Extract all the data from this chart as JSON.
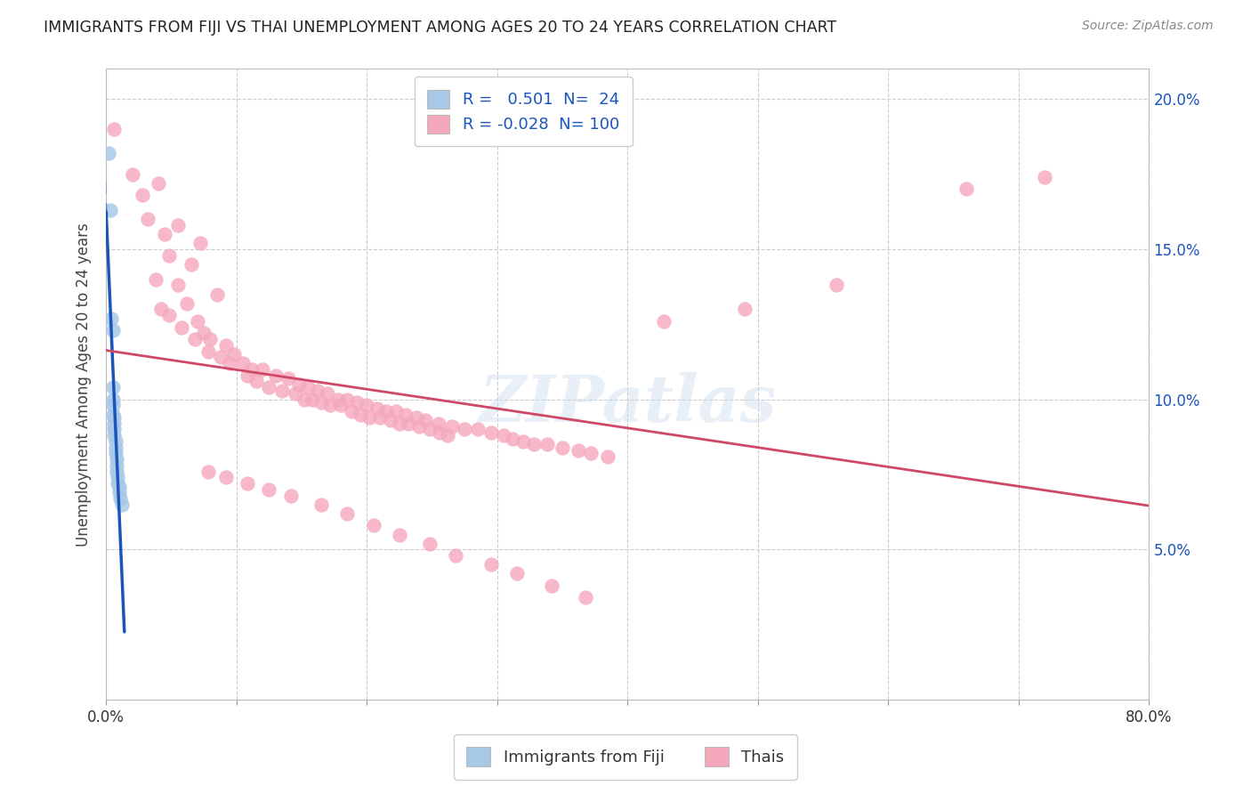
{
  "title": "IMMIGRANTS FROM FIJI VS THAI UNEMPLOYMENT AMONG AGES 20 TO 24 YEARS CORRELATION CHART",
  "source": "Source: ZipAtlas.com",
  "ylabel": "Unemployment Among Ages 20 to 24 years",
  "xlim": [
    0,
    0.8
  ],
  "ylim": [
    0,
    0.21
  ],
  "R_fiji": 0.501,
  "N_fiji": 24,
  "R_thai": -0.028,
  "N_thai": 100,
  "fiji_color": "#a8c8e8",
  "thai_color": "#f5a8bc",
  "fiji_line_color": "#1a55bb",
  "thai_line_color": "#d04868",
  "background_color": "#ffffff",
  "fiji_points": [
    [
      0.002,
      0.182
    ],
    [
      0.003,
      0.163
    ],
    [
      0.004,
      0.127
    ],
    [
      0.005,
      0.123
    ],
    [
      0.005,
      0.104
    ],
    [
      0.005,
      0.1
    ],
    [
      0.005,
      0.098
    ],
    [
      0.005,
      0.095
    ],
    [
      0.006,
      0.094
    ],
    [
      0.006,
      0.092
    ],
    [
      0.006,
      0.09
    ],
    [
      0.006,
      0.088
    ],
    [
      0.007,
      0.086
    ],
    [
      0.007,
      0.084
    ],
    [
      0.007,
      0.082
    ],
    [
      0.008,
      0.08
    ],
    [
      0.008,
      0.078
    ],
    [
      0.008,
      0.076
    ],
    [
      0.009,
      0.074
    ],
    [
      0.009,
      0.072
    ],
    [
      0.01,
      0.071
    ],
    [
      0.01,
      0.069
    ],
    [
      0.011,
      0.067
    ],
    [
      0.012,
      0.065
    ]
  ],
  "thai_points": [
    [
      0.006,
      0.19
    ],
    [
      0.02,
      0.175
    ],
    [
      0.04,
      0.172
    ],
    [
      0.028,
      0.168
    ],
    [
      0.032,
      0.16
    ],
    [
      0.055,
      0.158
    ],
    [
      0.045,
      0.155
    ],
    [
      0.072,
      0.152
    ],
    [
      0.048,
      0.148
    ],
    [
      0.065,
      0.145
    ],
    [
      0.038,
      0.14
    ],
    [
      0.055,
      0.138
    ],
    [
      0.085,
      0.135
    ],
    [
      0.062,
      0.132
    ],
    [
      0.042,
      0.13
    ],
    [
      0.048,
      0.128
    ],
    [
      0.07,
      0.126
    ],
    [
      0.058,
      0.124
    ],
    [
      0.075,
      0.122
    ],
    [
      0.068,
      0.12
    ],
    [
      0.08,
      0.12
    ],
    [
      0.092,
      0.118
    ],
    [
      0.078,
      0.116
    ],
    [
      0.098,
      0.115
    ],
    [
      0.088,
      0.114
    ],
    [
      0.105,
      0.112
    ],
    [
      0.095,
      0.112
    ],
    [
      0.112,
      0.11
    ],
    [
      0.12,
      0.11
    ],
    [
      0.13,
      0.108
    ],
    [
      0.108,
      0.108
    ],
    [
      0.14,
      0.107
    ],
    [
      0.115,
      0.106
    ],
    [
      0.148,
      0.105
    ],
    [
      0.125,
      0.104
    ],
    [
      0.155,
      0.104
    ],
    [
      0.135,
      0.103
    ],
    [
      0.162,
      0.103
    ],
    [
      0.145,
      0.102
    ],
    [
      0.17,
      0.102
    ],
    [
      0.152,
      0.1
    ],
    [
      0.178,
      0.1
    ],
    [
      0.158,
      0.1
    ],
    [
      0.185,
      0.1
    ],
    [
      0.165,
      0.099
    ],
    [
      0.192,
      0.099
    ],
    [
      0.172,
      0.098
    ],
    [
      0.2,
      0.098
    ],
    [
      0.18,
      0.098
    ],
    [
      0.208,
      0.097
    ],
    [
      0.188,
      0.096
    ],
    [
      0.215,
      0.096
    ],
    [
      0.195,
      0.095
    ],
    [
      0.222,
      0.096
    ],
    [
      0.202,
      0.094
    ],
    [
      0.23,
      0.095
    ],
    [
      0.21,
      0.094
    ],
    [
      0.238,
      0.094
    ],
    [
      0.218,
      0.093
    ],
    [
      0.245,
      0.093
    ],
    [
      0.225,
      0.092
    ],
    [
      0.255,
      0.092
    ],
    [
      0.232,
      0.092
    ],
    [
      0.265,
      0.091
    ],
    [
      0.24,
      0.091
    ],
    [
      0.275,
      0.09
    ],
    [
      0.248,
      0.09
    ],
    [
      0.285,
      0.09
    ],
    [
      0.256,
      0.089
    ],
    [
      0.295,
      0.089
    ],
    [
      0.262,
      0.088
    ],
    [
      0.305,
      0.088
    ],
    [
      0.312,
      0.087
    ],
    [
      0.32,
      0.086
    ],
    [
      0.328,
      0.085
    ],
    [
      0.338,
      0.085
    ],
    [
      0.35,
      0.084
    ],
    [
      0.362,
      0.083
    ],
    [
      0.372,
      0.082
    ],
    [
      0.385,
      0.081
    ],
    [
      0.078,
      0.076
    ],
    [
      0.092,
      0.074
    ],
    [
      0.108,
      0.072
    ],
    [
      0.125,
      0.07
    ],
    [
      0.142,
      0.068
    ],
    [
      0.165,
      0.065
    ],
    [
      0.185,
      0.062
    ],
    [
      0.205,
      0.058
    ],
    [
      0.225,
      0.055
    ],
    [
      0.248,
      0.052
    ],
    [
      0.268,
      0.048
    ],
    [
      0.295,
      0.045
    ],
    [
      0.315,
      0.042
    ],
    [
      0.342,
      0.038
    ],
    [
      0.368,
      0.034
    ],
    [
      0.66,
      0.17
    ],
    [
      0.72,
      0.174
    ],
    [
      0.56,
      0.138
    ],
    [
      0.49,
      0.13
    ],
    [
      0.428,
      0.126
    ]
  ]
}
